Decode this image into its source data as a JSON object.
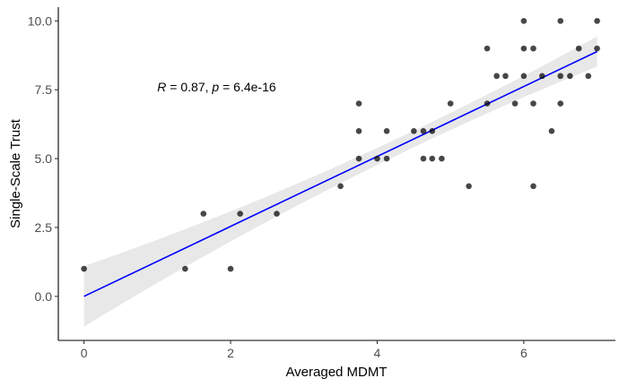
{
  "chart_data": {
    "type": "scatter",
    "xlabel": "Averaged MDMT",
    "ylabel": "Single-Scale Trust",
    "xlim": [
      -0.35,
      7.25
    ],
    "ylim": [
      -1.6,
      10.5
    ],
    "x_ticks": [
      0,
      2,
      4,
      6
    ],
    "x_tick_labels": [
      "0",
      "2",
      "4",
      "6"
    ],
    "y_ticks": [
      0,
      2.5,
      5,
      7.5,
      10
    ],
    "y_tick_labels": [
      "0.0",
      "2.5",
      "5.0",
      "7.5",
      "10.0"
    ],
    "grid": false,
    "legend": "none",
    "annotation": {
      "r_symbol": "R",
      "r_text": " = 0.87, ",
      "p_symbol": "p",
      "p_text": " = 6.4e-16",
      "x": 1.0,
      "y": 7.45
    },
    "points": [
      [
        0,
        1
      ],
      [
        1.38,
        1
      ],
      [
        1.63,
        3
      ],
      [
        2.0,
        1
      ],
      [
        2.13,
        3
      ],
      [
        2.63,
        3
      ],
      [
        3.5,
        4
      ],
      [
        3.75,
        7
      ],
      [
        3.75,
        6
      ],
      [
        3.75,
        5
      ],
      [
        4.0,
        5
      ],
      [
        4.13,
        6
      ],
      [
        4.13,
        5
      ],
      [
        4.5,
        6
      ],
      [
        4.63,
        6
      ],
      [
        4.63,
        5
      ],
      [
        4.75,
        6
      ],
      [
        4.75,
        5
      ],
      [
        4.88,
        5
      ],
      [
        5.0,
        7
      ],
      [
        5.25,
        4
      ],
      [
        5.5,
        9
      ],
      [
        5.5,
        7
      ],
      [
        5.63,
        8
      ],
      [
        5.75,
        8
      ],
      [
        5.88,
        7
      ],
      [
        6.0,
        10
      ],
      [
        6.0,
        9
      ],
      [
        6.0,
        8
      ],
      [
        6.13,
        9
      ],
      [
        6.13,
        7
      ],
      [
        6.13,
        4
      ],
      [
        6.25,
        8
      ],
      [
        6.38,
        6
      ],
      [
        6.5,
        10
      ],
      [
        6.5,
        8
      ],
      [
        6.5,
        7
      ],
      [
        6.63,
        8
      ],
      [
        6.75,
        9
      ],
      [
        6.88,
        8
      ],
      [
        7.0,
        10
      ],
      [
        7.0,
        9
      ]
    ],
    "fit": {
      "intercept": 0.0,
      "slope": 1.27,
      "x_range": [
        0,
        7
      ],
      "line_color": "#0000FF",
      "band_color": "#D9D9D9",
      "band_half_width_at_min": 1.1,
      "band_half_width_at_center": 0.3,
      "band_half_width_at_max": 0.55,
      "center_x": 4.5
    }
  }
}
